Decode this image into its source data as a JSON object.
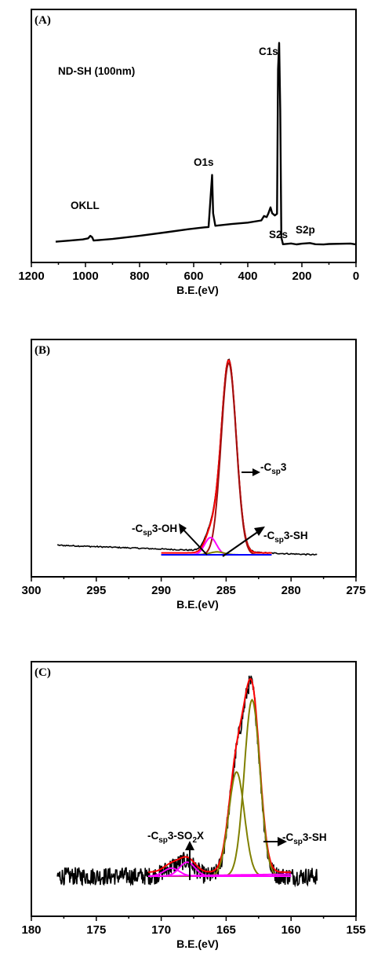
{
  "chart_data": [
    {
      "type": "line",
      "panel_label": "(A)",
      "title": "ND-SH (100nm)",
      "xlabel": "B.E.(eV)",
      "xlim": [
        1200,
        0
      ],
      "xticks": [
        1200,
        1000,
        800,
        600,
        400,
        200,
        0
      ],
      "series": [
        {
          "color": "#000000",
          "x": [
            1110,
            1060,
            1010,
            990,
            982,
            975,
            970,
            900,
            800,
            700,
            620,
            560,
            545,
            536,
            532,
            528,
            520,
            460,
            400,
            350,
            340,
            330,
            324,
            316,
            310,
            300,
            292,
            288,
            284,
            280,
            276,
            270,
            240,
            220,
            200,
            170,
            150,
            120,
            100,
            20,
            0
          ],
          "y": [
            2,
            3,
            5,
            7,
            10,
            8,
            3,
            6,
            10,
            15,
            19,
            21,
            22,
            70,
            92,
            40,
            23,
            26,
            28,
            31,
            36,
            35,
            40,
            48,
            40,
            37,
            40,
            235,
            270,
            180,
            8,
            -2,
            -1,
            -2,
            -1,
            0,
            -1,
            -2,
            -1,
            -1,
            -2
          ]
        }
      ],
      "annotations": [
        {
          "text": "OKLL",
          "x": 985,
          "y": 14
        },
        {
          "text": "O1s",
          "x": 532,
          "y": 96
        },
        {
          "text": "C1s",
          "x": 284,
          "y": 275
        },
        {
          "text": "S2s",
          "x": 232,
          "y": 2
        },
        {
          "text": "S2p",
          "x": 165,
          "y": 2
        }
      ]
    },
    {
      "type": "line",
      "panel_label": "(B)",
      "xlabel": "B.E.(eV)",
      "xlim": [
        300,
        275
      ],
      "xticks": [
        300,
        295,
        290,
        285,
        280,
        275
      ],
      "series": [
        {
          "color": "#000000",
          "kind": "raw",
          "x_range": [
            298,
            278
          ]
        },
        {
          "color": "#ff0000",
          "kind": "envelope",
          "x_range": [
            290,
            281.5
          ]
        },
        {
          "color": "#a01010",
          "kind": "component",
          "center": 284.8,
          "height": 1.0,
          "width": 0.58,
          "x_range": [
            290,
            281.5
          ]
        },
        {
          "color": "#ff00ff",
          "kind": "component",
          "center": 286.2,
          "height": 0.09,
          "width": 0.45,
          "x_range": [
            290,
            281.5
          ]
        },
        {
          "color": "#808000",
          "kind": "component",
          "center": 285.7,
          "height": 0.015,
          "width": 0.55,
          "x_range": [
            290,
            281.5
          ]
        },
        {
          "color": "#0000ff",
          "kind": "baseline",
          "x_range": [
            290,
            281.5
          ]
        }
      ],
      "annotations": [
        {
          "text": "-C",
          "sub": "sp",
          "tail": "3"
        },
        {
          "text": "-C",
          "sub": "sp",
          "tail": "3-OH"
        },
        {
          "text": "-C",
          "sub": "sp",
          "tail": "3-SH"
        }
      ]
    },
    {
      "type": "line",
      "panel_label": "(C)",
      "xlabel": "B.E.(eV)",
      "xlim": [
        180,
        155
      ],
      "xticks": [
        180,
        175,
        170,
        165,
        160,
        155
      ],
      "series": [
        {
          "color": "#000000",
          "kind": "raw",
          "x_range": [
            178,
            158
          ]
        },
        {
          "color": "#ff0000",
          "kind": "envelope",
          "x_range": [
            171,
            160
          ]
        },
        {
          "color": "#808000",
          "kind": "component",
          "center": 163.0,
          "height": 0.88,
          "width": 0.6,
          "x_range": [
            171,
            160
          ]
        },
        {
          "color": "#808000",
          "kind": "component",
          "center": 164.2,
          "height": 0.52,
          "width": 0.6,
          "x_range": [
            171,
            160
          ]
        },
        {
          "color": "#ff00ff",
          "kind": "component",
          "center": 168.0,
          "height": 0.07,
          "width": 0.6,
          "x_range": [
            171,
            160
          ]
        },
        {
          "color": "#ff00ff",
          "kind": "component",
          "center": 169.2,
          "height": 0.04,
          "width": 0.6,
          "x_range": [
            171,
            160
          ]
        },
        {
          "color": "#ff00ff",
          "kind": "baseline",
          "x_range": [
            171,
            160
          ]
        }
      ],
      "annotations": [
        {
          "text": "-C",
          "sub": "sp",
          "tail": "3-SO",
          "sub2": "2",
          "tail2": "X"
        },
        {
          "text": "-C",
          "sub": "sp",
          "tail": "3-SH"
        }
      ]
    }
  ]
}
